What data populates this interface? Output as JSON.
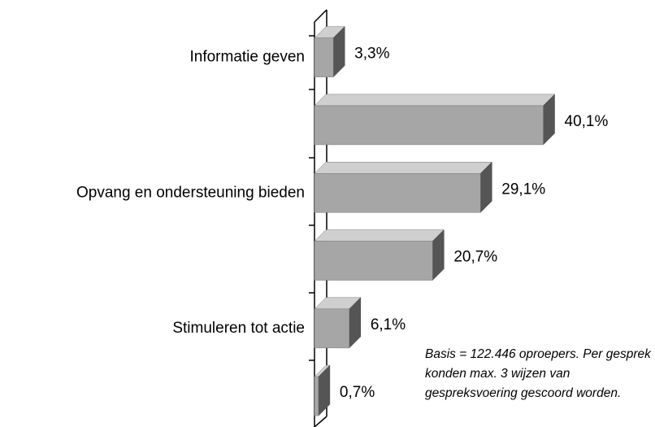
{
  "chart_data": {
    "type": "bar3d_horizontal",
    "categories": [
      "Informatie geven",
      null,
      "Opvang en ondersteuning bieden",
      null,
      "Stimuleren tot actie",
      null
    ],
    "values": [
      3.3,
      40.1,
      29.1,
      20.7,
      6.1,
      0.7
    ],
    "value_labels": [
      "3,3%",
      "40,1%",
      "29,1%",
      "20,7%",
      "6,1%",
      "0,7%"
    ],
    "color": "#a6a6a6",
    "xlim": [
      0,
      50
    ],
    "annotation": "Basis = 122.446 oproepers. Per gesprek konden max. 3 wijzen van gespreksvoering gescoord worden."
  }
}
